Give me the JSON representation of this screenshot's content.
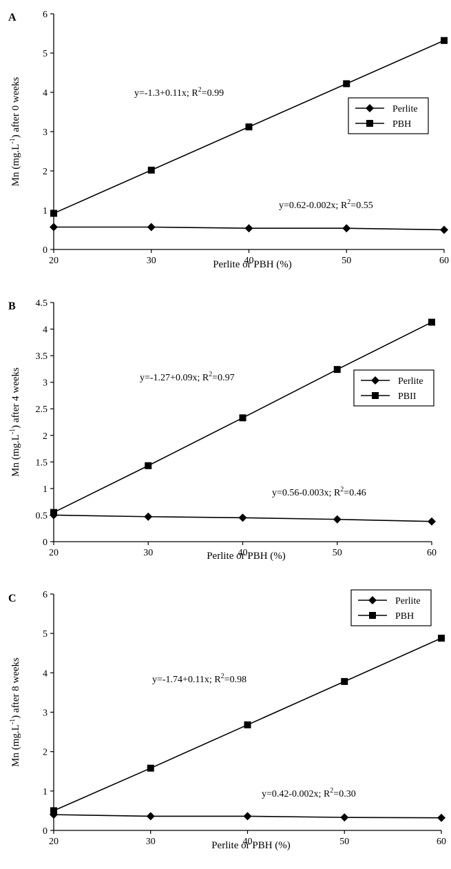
{
  "chart_data": [
    {
      "type": "line",
      "panel": "A",
      "x": [
        20,
        30,
        40,
        50,
        60
      ],
      "xlim": [
        20,
        60
      ],
      "xticks": [
        20,
        30,
        40,
        50,
        60
      ],
      "ylim": [
        0,
        6
      ],
      "yticks": [
        0,
        1,
        2,
        3,
        4,
        5,
        6
      ],
      "xlabel": "Perlite or PBH (%)",
      "ylabel_prefix": "Mn (mg.L",
      "ylabel_sup": "-1",
      "ylabel_suffix": ") after 0 weeks",
      "series": [
        {
          "name": "Perlite",
          "marker": "diamond",
          "values": [
            0.57,
            0.57,
            0.54,
            0.54,
            0.5
          ]
        },
        {
          "name": "PBH",
          "marker": "square",
          "values": [
            0.92,
            2.02,
            3.12,
            4.22,
            5.32
          ]
        }
      ],
      "equations": [
        {
          "pre": "y=-1.3+0.11x; R",
          "sup": "2",
          "post": "=0.99"
        },
        {
          "pre": "y=0.62-0.002x; R",
          "sup": "2",
          "post": "=0.55"
        }
      ],
      "legend_position": "right"
    },
    {
      "type": "line",
      "panel": "B",
      "x": [
        20,
        30,
        40,
        50,
        60
      ],
      "xlim": [
        20,
        60
      ],
      "xticks": [
        20,
        30,
        40,
        50,
        60
      ],
      "ylim": [
        0,
        4.5
      ],
      "yticks": [
        0,
        0.5,
        1,
        1.5,
        2,
        2.5,
        3,
        3.5,
        4,
        4.5
      ],
      "xlabel": "Perlite or PBH (%)",
      "ylabel_prefix": "Mn (mg.L",
      "ylabel_sup": "-1",
      "ylabel_suffix": ") after 4 weeks",
      "series": [
        {
          "name": "Perlite",
          "marker": "diamond",
          "values": [
            0.5,
            0.47,
            0.45,
            0.42,
            0.38
          ]
        },
        {
          "name": "PBII",
          "marker": "square",
          "values": [
            0.55,
            1.43,
            2.33,
            3.24,
            4.13
          ]
        }
      ],
      "equations": [
        {
          "pre": "y=-1.27+0.09x; R",
          "sup": "2",
          "post": "=0.97"
        },
        {
          "pre": "y=0.56-0.003x; R",
          "sup": "2",
          "post": "=0.46"
        }
      ],
      "legend_position": "right"
    },
    {
      "type": "line",
      "panel": "C",
      "x": [
        20,
        30,
        40,
        50,
        60
      ],
      "xlim": [
        20,
        60
      ],
      "xticks": [
        20,
        30,
        40,
        50,
        60
      ],
      "ylim": [
        0,
        6
      ],
      "yticks": [
        0,
        1,
        2,
        3,
        4,
        5,
        6
      ],
      "xlabel": "Perlite or PBH (%)",
      "ylabel_prefix": "Mn (mg.L",
      "ylabel_sup": "-1",
      "ylabel_suffix": ") after 8 weeks",
      "series": [
        {
          "name": "Perlite",
          "marker": "diamond",
          "values": [
            0.4,
            0.36,
            0.36,
            0.33,
            0.32
          ]
        },
        {
          "name": "PBH",
          "marker": "square",
          "values": [
            0.5,
            1.58,
            2.68,
            3.78,
            4.88
          ]
        }
      ],
      "equations": [
        {
          "pre": "y=-1.74+0.11x; R",
          "sup": "2",
          "post": "=0.98"
        },
        {
          "pre": "y=0.42-0.002x; R",
          "sup": "2",
          "post": "=0.30"
        }
      ],
      "legend_position": "top-right"
    }
  ]
}
